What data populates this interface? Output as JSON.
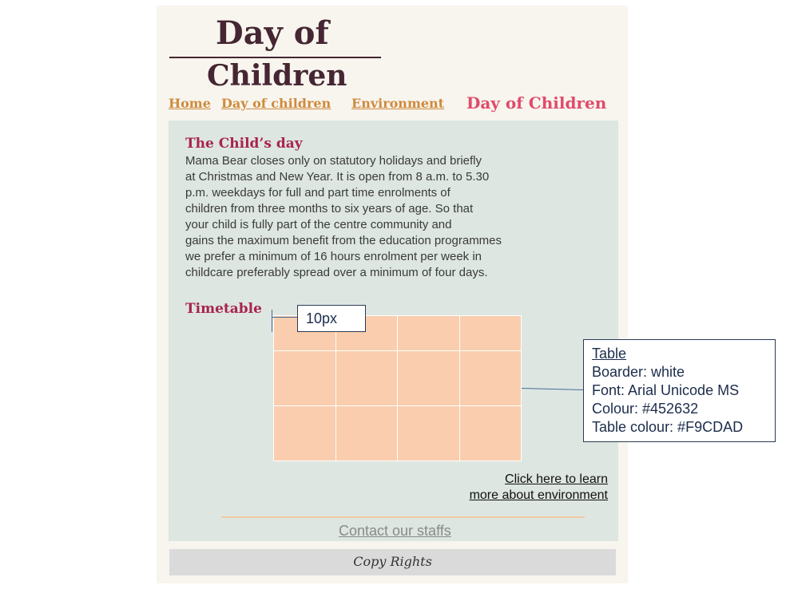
{
  "header": {
    "title_line1": "Day of",
    "title_line2": "Children"
  },
  "nav": {
    "home": "Home",
    "day_of_children": "Day of children",
    "environment": "Environment",
    "current_page": "Day of Children"
  },
  "main": {
    "childs_day_title": "The Child’s day",
    "childs_day_lines": [
      "Mama Bear closes only on statutory holidays and briefly",
      "at Christmas and New Year. It is open from 8 a.m. to 5.30",
      "p.m. weekdays for full and part time enrolments of",
      "children from three months to six years of age. So that",
      "your child is fully part of the centre community and",
      "gains the maximum benefit from the education programmes",
      "we prefer a minimum of 16 hours enrolment per week in",
      "childcare preferably spread over a minimum of four days."
    ],
    "timetable_title": "Timetable",
    "env_link_line1": "Click here to learn",
    "env_link_line2": "more about  environment",
    "contact_link": "Contact our staffs"
  },
  "annotations": {
    "spacing_label": "10px",
    "table_spec": {
      "heading": "Table",
      "border": "Boarder: white",
      "font": "Font: Arial Unicode MS",
      "colour": "Colour:  #452632",
      "table_colour": "Table colour: #F9CDAD"
    }
  },
  "footer": {
    "copyright": "Copy Rights"
  },
  "colors": {
    "text_brown": "#452632",
    "table_fill": "#F9CDAD",
    "nav_link": "#d08a3c",
    "section_title": "#a8234f",
    "content_bg": "#dde6e1"
  }
}
